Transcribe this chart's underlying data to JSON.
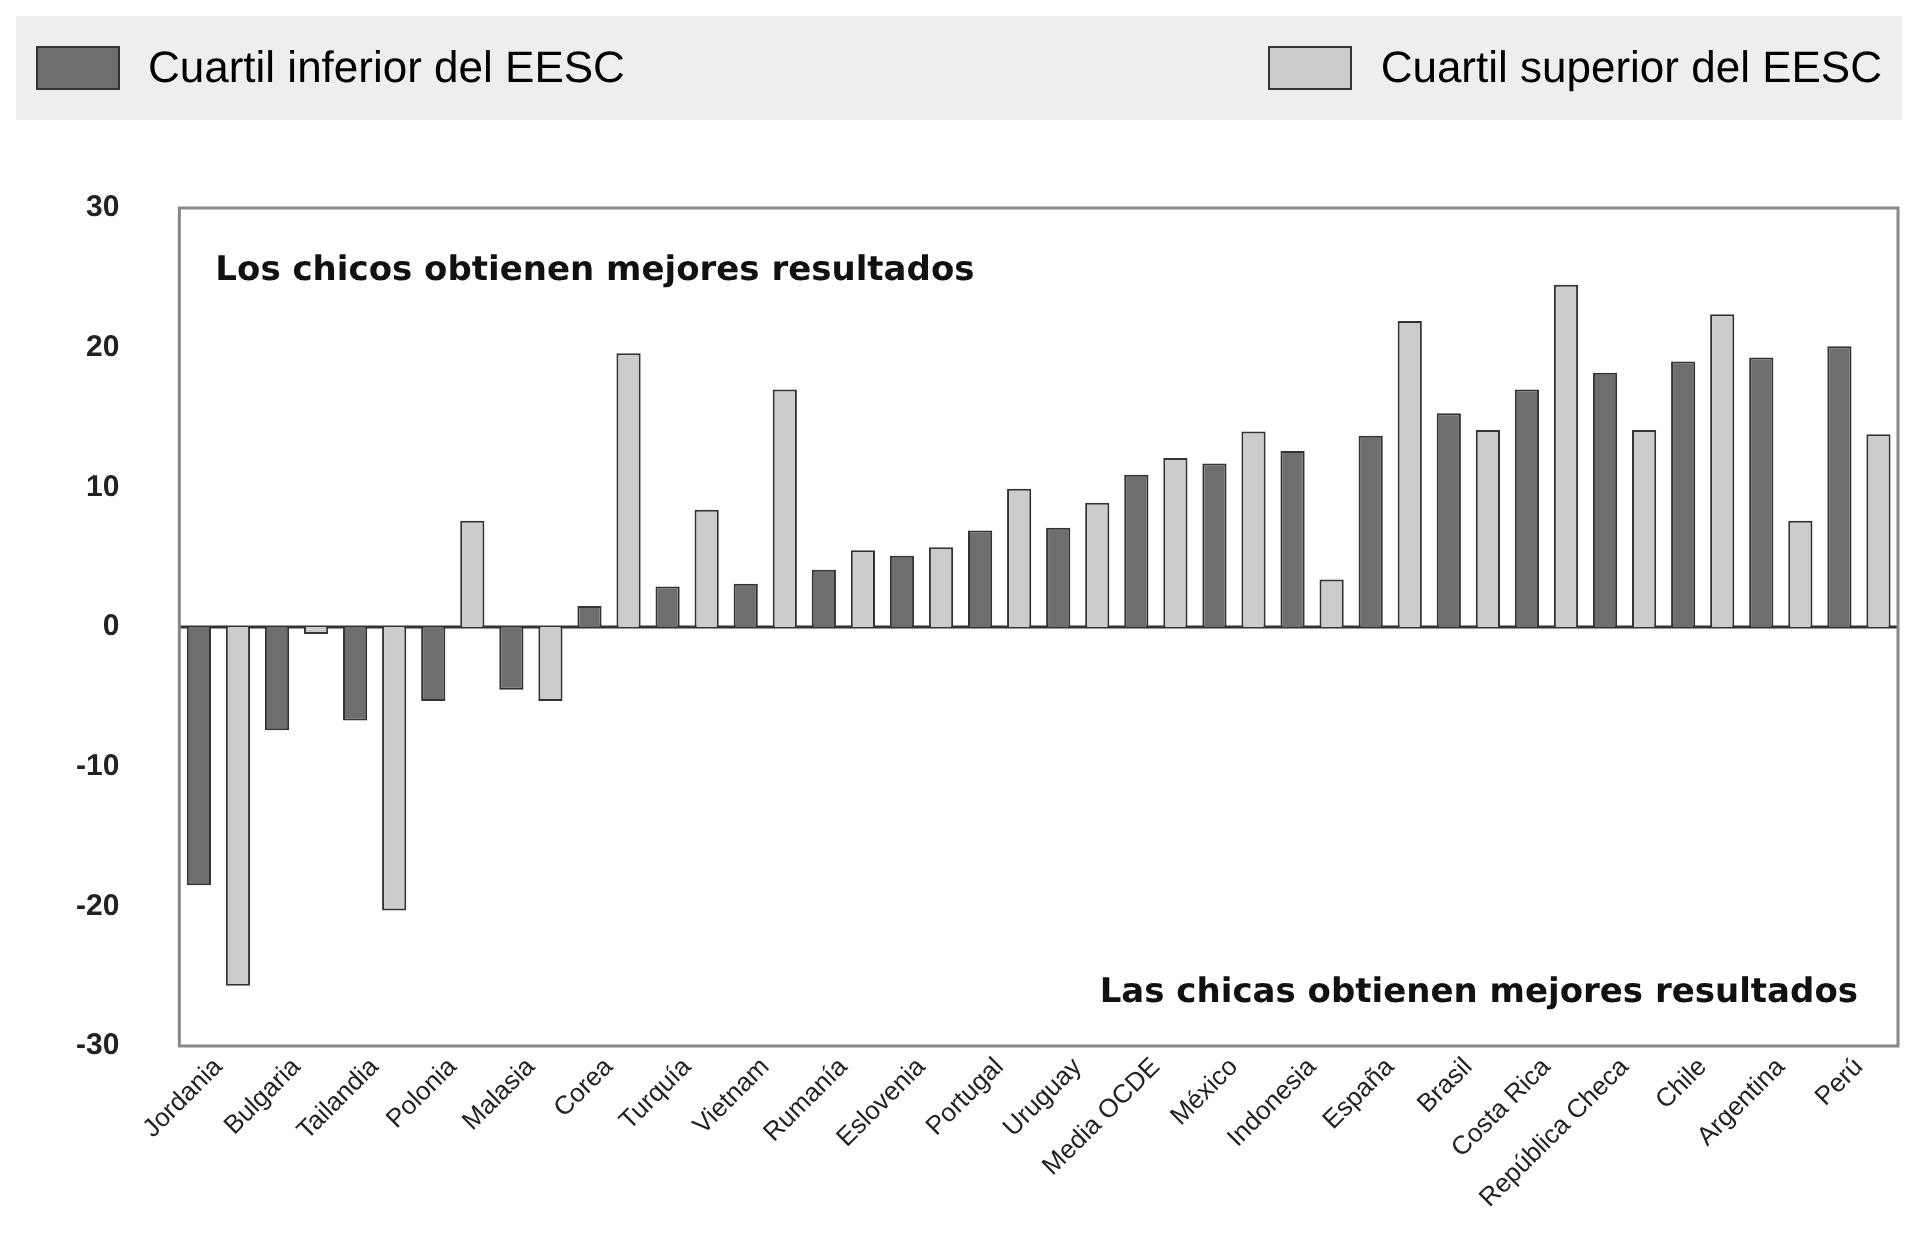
{
  "chart_data": {
    "type": "bar",
    "categories": [
      "Jordania",
      "Bulgaria",
      "Tailandia",
      "Polonia",
      "Malasia",
      "Corea",
      "Turquía",
      "Vietnam",
      "Rumanía",
      "Eslovenia",
      "Portugal",
      "Uruguay",
      "Media OCDE",
      "México",
      "Indonesia",
      "España",
      "Brasil",
      "Costa Rica",
      "República Checa",
      "Chile",
      "Argentina",
      "Perú"
    ],
    "series": [
      {
        "name": "Cuartil inferior del EESC",
        "color": "#6e6e6e",
        "values": [
          -18.5,
          -7.4,
          -6.7,
          -5.3,
          -4.5,
          1.5,
          2.9,
          3.1,
          4.1,
          5.1,
          6.9,
          7.1,
          10.9,
          11.7,
          12.6,
          13.7,
          15.3,
          17.0,
          18.2,
          19.0,
          19.3,
          20.1
        ]
      },
      {
        "name": "Cuartil superior del EESC",
        "color": "#cccccc",
        "values": [
          -25.7,
          -0.5,
          -20.3,
          7.6,
          -5.3,
          19.6,
          8.4,
          17.0,
          5.5,
          5.7,
          9.9,
          8.9,
          12.1,
          14.0,
          3.4,
          21.9,
          14.1,
          24.5,
          14.1,
          22.4,
          7.6,
          13.8
        ]
      }
    ],
    "ylim": [
      -30,
      30
    ],
    "yticks": [
      -30,
      -20,
      -10,
      0,
      10,
      20,
      30
    ],
    "legend": "top",
    "annotations": [
      "Los chicos obtienen mejores resultados",
      "Las chicas obtienen mejores resultados"
    ]
  }
}
